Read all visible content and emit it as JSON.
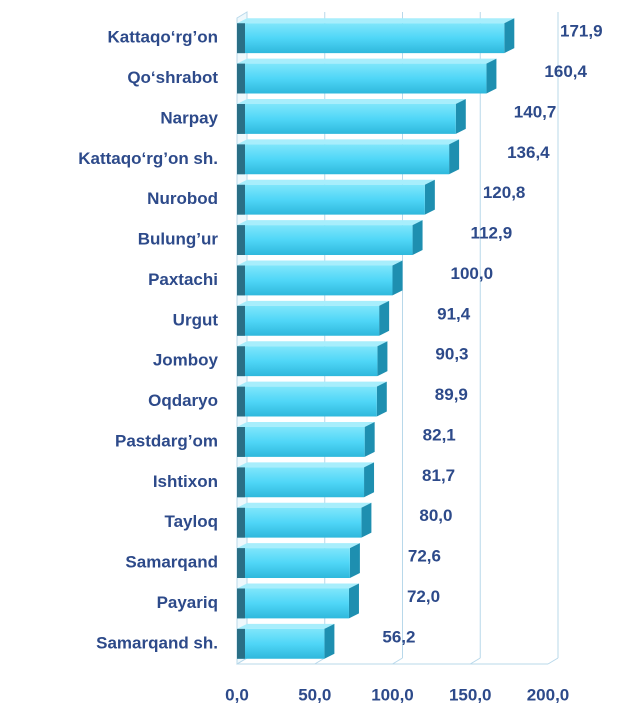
{
  "chart_data": {
    "type": "bar",
    "orientation": "horizontal",
    "categories": [
      "Kattaqo‘rg’on",
      "Qo‘shrabot",
      "Narpay",
      "Kattaqo‘rg’on  sh.",
      "Nurobod",
      "Bulung’ur",
      "Paxtachi",
      "Urgut",
      "Jomboy",
      "Oqdaryo",
      "Pastdarg’om",
      "Ishtixon",
      "Tayloq",
      "Samarqand",
      "Payariq",
      "Samarqand sh."
    ],
    "values": [
      171.9,
      160.4,
      140.7,
      136.4,
      120.8,
      112.9,
      100.0,
      91.4,
      90.3,
      89.9,
      82.1,
      81.7,
      80.0,
      72.6,
      72.0,
      56.2
    ],
    "value_labels": [
      "171,9",
      "160,4",
      "140,7",
      "136,4",
      "120,8",
      "112,9",
      "100,0",
      "91,4",
      "90,3",
      "89,9",
      "82,1",
      "81,7",
      "80,0",
      "72,6",
      "72,0",
      "56,2"
    ],
    "color": "#4fd6f7",
    "xlim": [
      0,
      200
    ],
    "xticks": [
      {
        "value": 0,
        "label": "0,0"
      },
      {
        "value": 50,
        "label": "50,0"
      },
      {
        "value": 100,
        "label": "100,0"
      },
      {
        "value": 150,
        "label": "150,0"
      },
      {
        "value": 200,
        "label": "200,0"
      }
    ],
    "grid": true
  }
}
